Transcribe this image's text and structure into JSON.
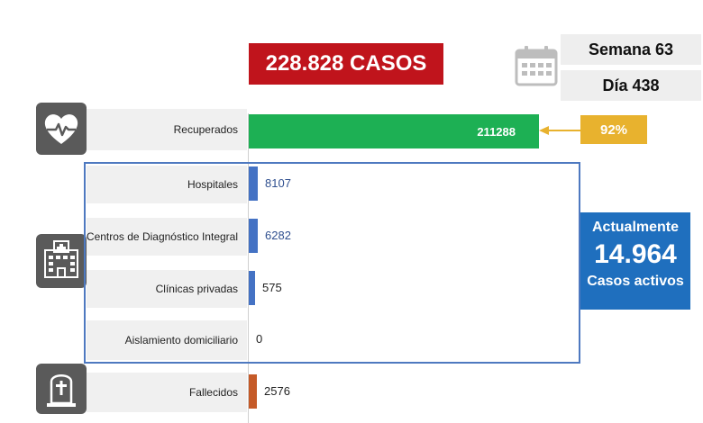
{
  "header": {
    "total_cases": "228.828 CASOS",
    "week": "Semana 63",
    "day": "Día 438"
  },
  "recovered": {
    "label": "Recuperados",
    "value_text": "211288",
    "percent": "92%"
  },
  "active": {
    "line1": "Actualmente",
    "number": "14.964",
    "line3": "Casos activos"
  },
  "colors": {
    "total_bg": "#c0141c",
    "recovered_bar": "#1db054",
    "care_bar": "#4472c4",
    "deaths_bar": "#c55a28",
    "badge": "#e8b22e",
    "active_bg": "#1f6fbe",
    "frame": "#4e79c0"
  },
  "icons": {
    "top": "heart-pulse-icon",
    "middle": "hospital-icon",
    "bottom": "tombstone-icon",
    "calendar": "calendar-icon"
  },
  "chart_data": {
    "type": "bar",
    "orientation": "horizontal",
    "categories": [
      "Recuperados",
      "Hospitales",
      "Centros de Diagnóstico Integral",
      "Clínicas privadas",
      "Aislamiento domiciliario",
      "Fallecidos"
    ],
    "values": [
      211288,
      8107,
      6282,
      575,
      0,
      2576
    ],
    "value_labels": [
      "211288",
      "8107",
      "6282",
      "575",
      "0",
      "2576"
    ],
    "xlim": [
      0,
      211288
    ],
    "grid": false
  }
}
